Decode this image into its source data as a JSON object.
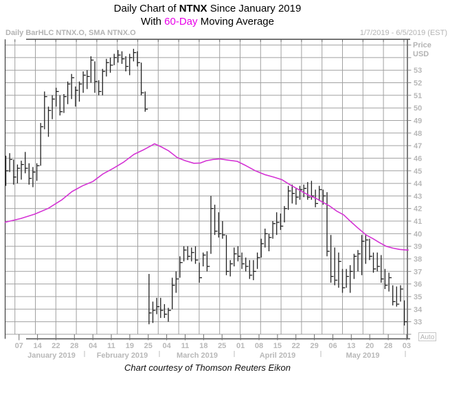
{
  "title": {
    "line1_pre": "Daily Chart of ",
    "line1_bold": "NTNX",
    "line1_post": " Since January 2019",
    "line2_pre": "With ",
    "line2_accent": "60-Day",
    "line2_post": " Moving Average",
    "accent_color": "#e800e8"
  },
  "header": {
    "left": "Daily BarHLC NTNX.O, SMA NTNX.O",
    "right": "1/7/2019 - 6/5/2019 (EST)"
  },
  "axis": {
    "price_label": "Price",
    "currency_label": "USD",
    "price_ticks": [
      "53",
      "52",
      "51",
      "50",
      "49",
      "48",
      "47",
      "46",
      "45",
      "44",
      "43",
      "42",
      "41",
      "40",
      "39",
      "38",
      "37",
      "36",
      "35",
      "34",
      "33"
    ],
    "auto_label": "Auto",
    "x_tick_labels": [
      "07",
      "14",
      "22",
      "28",
      "04",
      "11",
      "19",
      "25",
      "04",
      "11",
      "18",
      "25",
      "01",
      "08",
      "15",
      "22",
      "29",
      "06",
      "13",
      "20",
      "28",
      "03"
    ],
    "month_labels": [
      "January 2019",
      "February 2019",
      "March 2019",
      "April 2019",
      "May 2019"
    ]
  },
  "footer": {
    "text": "Chart courtesy of Thomson Reuters Eikon"
  },
  "chart_data": {
    "type": "bar",
    "subtype": "hlc-bars-with-sma-line",
    "title": "Daily Chart of NTNX Since January 2019 With 60-Day Moving Average",
    "instrument": "NTNX.O",
    "ylabel": "Price USD",
    "ylim": [
      31.5,
      55.5
    ],
    "price_axis_labels": [
      53,
      52,
      51,
      50,
      49,
      48,
      47,
      46,
      45,
      44,
      43,
      42,
      41,
      40,
      39,
      38,
      37,
      36,
      35,
      34,
      33
    ],
    "grid": true,
    "colors": {
      "bars": "#1e1e1e",
      "sma": "#d432d4",
      "grid": "#a0a0a0",
      "axis_text": "#b8b8b8"
    },
    "dates": [
      "1/7",
      "1/8",
      "1/9",
      "1/10",
      "1/11",
      "1/14",
      "1/15",
      "1/16",
      "1/17",
      "1/18",
      "1/22",
      "1/23",
      "1/24",
      "1/25",
      "1/28",
      "1/29",
      "1/30",
      "1/31",
      "2/1",
      "2/4",
      "2/5",
      "2/6",
      "2/7",
      "2/8",
      "2/11",
      "2/12",
      "2/13",
      "2/14",
      "2/15",
      "2/19",
      "2/20",
      "2/21",
      "2/22",
      "2/25",
      "2/26",
      "2/27",
      "2/28",
      "3/1",
      "3/4",
      "3/5",
      "3/6",
      "3/7",
      "3/8",
      "3/11",
      "3/12",
      "3/13",
      "3/14",
      "3/15",
      "3/18",
      "3/19",
      "3/20",
      "3/21",
      "3/22",
      "3/25",
      "3/26",
      "3/27",
      "3/28",
      "3/29",
      "4/1",
      "4/2",
      "4/3",
      "4/4",
      "4/5",
      "4/8",
      "4/9",
      "4/10",
      "4/11",
      "4/12",
      "4/15",
      "4/16",
      "4/17",
      "4/18",
      "4/22",
      "4/23",
      "4/24",
      "4/25",
      "4/26",
      "4/29",
      "4/30",
      "5/1",
      "5/2",
      "5/3",
      "5/6",
      "5/7",
      "5/8",
      "5/9",
      "5/10",
      "5/13",
      "5/14",
      "5/15",
      "5/16",
      "5/17",
      "5/20",
      "5/21",
      "5/22",
      "5/23",
      "5/24",
      "5/28",
      "5/29",
      "5/30",
      "5/31",
      "6/3",
      "6/4",
      "6/5"
    ],
    "bars_hlc": [
      [
        46.2,
        43.8,
        45.0
      ],
      [
        46.4,
        44.9,
        45.9
      ],
      [
        45.9,
        43.9,
        44.5
      ],
      [
        45.5,
        44.0,
        45.2
      ],
      [
        45.8,
        44.3,
        45.5
      ],
      [
        46.5,
        44.8,
        45.2
      ],
      [
        45.6,
        43.9,
        44.4
      ],
      [
        45.3,
        43.7,
        44.9
      ],
      [
        45.6,
        44.2,
        45.4
      ],
      [
        48.8,
        45.4,
        48.5
      ],
      [
        51.3,
        48.3,
        50.9
      ],
      [
        50.1,
        47.7,
        49.8
      ],
      [
        51.0,
        49.1,
        50.7
      ],
      [
        51.6,
        50.1,
        51.3
      ],
      [
        51.0,
        49.4,
        49.7
      ],
      [
        51.1,
        49.6,
        50.9
      ],
      [
        52.1,
        50.3,
        51.9
      ],
      [
        52.7,
        50.7,
        52.4
      ],
      [
        51.7,
        50.1,
        51.4
      ],
      [
        52.1,
        50.5,
        51.9
      ],
      [
        52.9,
        51.2,
        52.6
      ],
      [
        53.0,
        51.5,
        52.5
      ],
      [
        54.1,
        52.0,
        53.8
      ],
      [
        53.7,
        51.2,
        52.1
      ],
      [
        52.2,
        51.0,
        51.3
      ],
      [
        53.1,
        51.0,
        52.9
      ],
      [
        53.9,
        52.5,
        53.6
      ],
      [
        54.0,
        52.8,
        53.4
      ],
      [
        54.3,
        53.4,
        54.0
      ],
      [
        54.6,
        53.6,
        54.2
      ],
      [
        54.5,
        53.5,
        53.9
      ],
      [
        54.1,
        52.9,
        53.3
      ],
      [
        54.3,
        52.6,
        54.0
      ],
      [
        54.7,
        53.7,
        54.4
      ],
      [
        54.5,
        53.3,
        53.6
      ],
      [
        53.6,
        51.0,
        51.2
      ],
      [
        51.3,
        49.7,
        49.9
      ],
      [
        36.8,
        32.8,
        33.7
      ],
      [
        34.6,
        32.9,
        33.9
      ],
      [
        34.9,
        33.6,
        34.2
      ],
      [
        34.9,
        33.3,
        33.9
      ],
      [
        34.4,
        33.3,
        33.6
      ],
      [
        34.1,
        33.0,
        33.9
      ],
      [
        36.5,
        34.0,
        35.9
      ],
      [
        37.0,
        35.3,
        36.4
      ],
      [
        38.2,
        36.5,
        37.7
      ],
      [
        39.0,
        37.8,
        38.7
      ],
      [
        39.0,
        37.9,
        38.2
      ],
      [
        38.9,
        37.8,
        38.5
      ],
      [
        39.0,
        37.6,
        37.9
      ],
      [
        37.7,
        36.1,
        36.5
      ],
      [
        38.5,
        37.4,
        38.3
      ],
      [
        38.6,
        37.0,
        37.4
      ],
      [
        43.0,
        38.4,
        42.0
      ],
      [
        42.3,
        39.9,
        40.2
      ],
      [
        41.7,
        39.7,
        40.0
      ],
      [
        41.0,
        39.6,
        39.9
      ],
      [
        39.9,
        36.7,
        37.0
      ],
      [
        37.9,
        36.6,
        37.6
      ],
      [
        38.9,
        37.4,
        38.4
      ],
      [
        39.0,
        37.8,
        38.2
      ],
      [
        38.5,
        37.2,
        37.6
      ],
      [
        38.1,
        37.0,
        37.4
      ],
      [
        37.9,
        36.4,
        36.7
      ],
      [
        37.9,
        36.3,
        37.0
      ],
      [
        38.5,
        37.2,
        38.1
      ],
      [
        39.6,
        38.1,
        39.2
      ],
      [
        40.4,
        38.9,
        40.0
      ],
      [
        40.0,
        38.6,
        39.7
      ],
      [
        41.0,
        39.6,
        40.8
      ],
      [
        41.7,
        39.9,
        40.9
      ],
      [
        41.6,
        40.3,
        40.6
      ],
      [
        42.2,
        40.9,
        42.0
      ],
      [
        43.8,
        41.9,
        43.4
      ],
      [
        43.9,
        42.4,
        43.2
      ],
      [
        43.6,
        42.3,
        42.9
      ],
      [
        43.8,
        42.7,
        43.5
      ],
      [
        43.9,
        42.9,
        43.6
      ],
      [
        44.1,
        42.7,
        42.9
      ],
      [
        44.2,
        42.7,
        43.0
      ],
      [
        43.5,
        42.1,
        42.4
      ],
      [
        43.8,
        42.6,
        43.5
      ],
      [
        43.5,
        42.3,
        43.0
      ],
      [
        43.3,
        38.2,
        38.6
      ],
      [
        39.9,
        36.1,
        36.6
      ],
      [
        38.9,
        35.9,
        36.3
      ],
      [
        38.5,
        35.7,
        37.8
      ],
      [
        37.2,
        35.3,
        35.7
      ],
      [
        37.2,
        35.7,
        36.6
      ],
      [
        37.5,
        35.3,
        37.0
      ],
      [
        38.4,
        36.4,
        38.2
      ],
      [
        38.7,
        37.0,
        38.4
      ],
      [
        39.9,
        36.7,
        39.4
      ],
      [
        39.9,
        37.6,
        39.5
      ],
      [
        39.6,
        37.9,
        38.2
      ],
      [
        38.5,
        36.9,
        37.2
      ],
      [
        38.5,
        37.0,
        37.4
      ],
      [
        38.3,
        36.1,
        36.4
      ],
      [
        37.2,
        35.6,
        35.9
      ],
      [
        36.9,
        35.4,
        36.5
      ],
      [
        35.9,
        34.3,
        34.6
      ],
      [
        35.8,
        34.2,
        34.4
      ],
      [
        35.9,
        34.6,
        35.6
      ],
      [
        34.7,
        32.7,
        33.0
      ]
    ],
    "sma60": {
      "name": "60-Day Moving Average",
      "color": "#d432d4",
      "points": [
        [
          -0.3,
          40.9
        ],
        [
          3.8,
          41.2
        ],
        [
          7.4,
          41.55
        ],
        [
          10.9,
          42.0
        ],
        [
          14.5,
          42.7
        ],
        [
          17.1,
          43.35
        ],
        [
          19.8,
          43.8
        ],
        [
          22.5,
          44.15
        ],
        [
          25.1,
          44.75
        ],
        [
          27.8,
          45.2
        ],
        [
          30.5,
          45.7
        ],
        [
          33.1,
          46.3
        ],
        [
          35.8,
          46.7
        ],
        [
          37.6,
          47.0
        ],
        [
          38.4,
          47.15
        ],
        [
          40.2,
          46.9
        ],
        [
          42.0,
          46.6
        ],
        [
          44.3,
          46.05
        ],
        [
          46.4,
          45.8
        ],
        [
          48.6,
          45.6
        ],
        [
          50.3,
          45.62
        ],
        [
          51.8,
          45.8
        ],
        [
          53.5,
          45.9
        ],
        [
          55.3,
          45.95
        ],
        [
          57.4,
          45.85
        ],
        [
          59.8,
          45.75
        ],
        [
          62.1,
          45.4
        ],
        [
          64.5,
          45.0
        ],
        [
          66.9,
          44.7
        ],
        [
          69.2,
          44.5
        ],
        [
          71.3,
          44.3
        ],
        [
          73.4,
          43.9
        ],
        [
          75.7,
          43.5
        ],
        [
          78.0,
          43.1
        ],
        [
          80.2,
          42.8
        ],
        [
          81.9,
          42.5
        ],
        [
          83.7,
          42.2
        ],
        [
          85.5,
          41.8
        ],
        [
          87.3,
          41.5
        ],
        [
          89.0,
          41.0
        ],
        [
          90.8,
          40.5
        ],
        [
          93.1,
          39.9
        ],
        [
          94.9,
          39.6
        ],
        [
          96.5,
          39.3
        ],
        [
          98.3,
          39.0
        ],
        [
          100.0,
          38.85
        ],
        [
          101.8,
          38.75
        ],
        [
          103.6,
          38.7
        ],
        [
          104.1,
          38.7
        ]
      ]
    }
  }
}
